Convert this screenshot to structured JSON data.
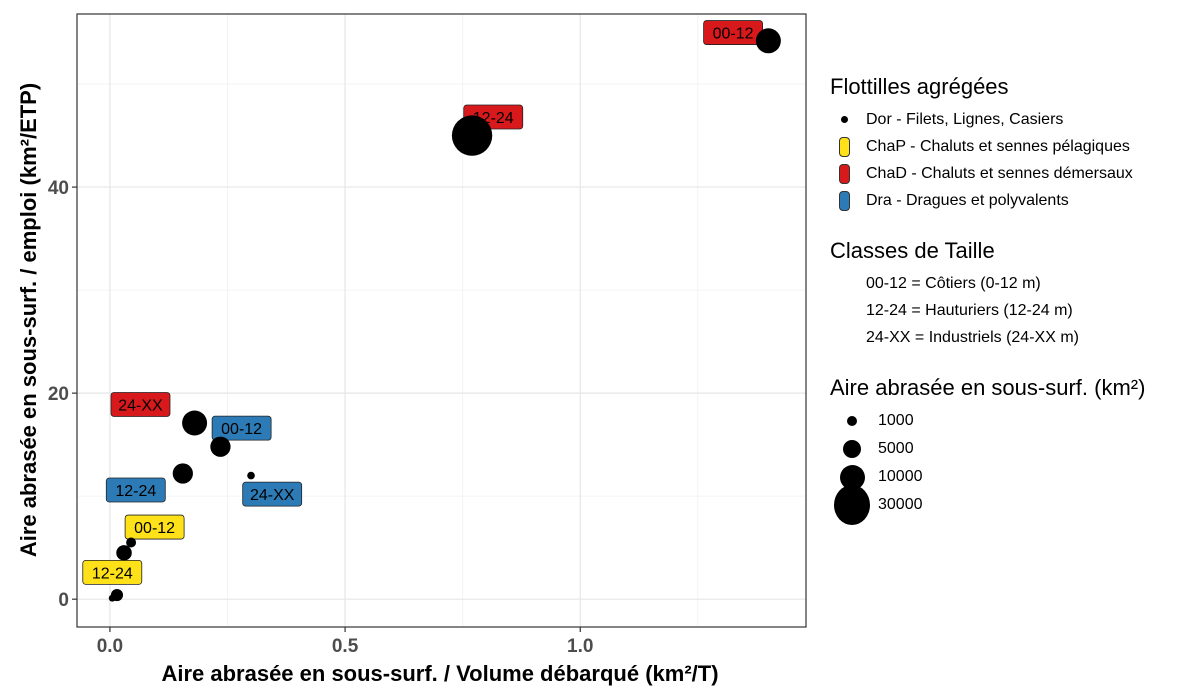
{
  "chart_data": {
    "type": "scatter",
    "title": "",
    "xlabel": "Aire abrasée en sous-surf. / Volume débarqué (km²/T)",
    "ylabel": "Aire abrasée en sous-surf. / emploi (km²/ETP)",
    "xlim": [
      -0.07,
      1.48
    ],
    "ylim": [
      -2.7,
      56.8
    ],
    "xticks": [
      0.0,
      0.5,
      1.0
    ],
    "xtick_labels": [
      "0.0",
      "0.5",
      "1.0"
    ],
    "yticks": [
      0,
      20,
      40
    ],
    "ytick_labels": [
      "0",
      "20",
      "40"
    ],
    "grid": true,
    "legend_position": "right",
    "points": [
      {
        "x": 0.005,
        "y": 0.1,
        "area": 200,
        "fleet": "Dor",
        "label": ""
      },
      {
        "x": 0.015,
        "y": 0.4,
        "area": 1500,
        "fleet": "Dor",
        "label": ""
      },
      {
        "x": 0.03,
        "y": 4.5,
        "area": 3000,
        "fleet": "ChaP",
        "label": "12-24"
      },
      {
        "x": 0.045,
        "y": 5.5,
        "area": 800,
        "fleet": "ChaP",
        "label": "00-12"
      },
      {
        "x": 0.155,
        "y": 12.2,
        "area": 6000,
        "fleet": "Dra",
        "label": "12-24"
      },
      {
        "x": 0.18,
        "y": 17.1,
        "area": 10000,
        "fleet": "ChaD",
        "label": "24-XX"
      },
      {
        "x": 0.235,
        "y": 14.8,
        "area": 6000,
        "fleet": "Dra",
        "label": "00-12"
      },
      {
        "x": 0.3,
        "y": 12.0,
        "area": 300,
        "fleet": "Dra",
        "label": "24-XX"
      },
      {
        "x": 0.77,
        "y": 45.0,
        "area": 30000,
        "fleet": "ChaD",
        "label": "12-24"
      },
      {
        "x": 1.4,
        "y": 54.2,
        "area": 10000,
        "fleet": "ChaD",
        "label": "00-12"
      }
    ],
    "labels": [
      {
        "text": "12-24",
        "fleet": "ChaP",
        "x": 0.005,
        "y": 2.6
      },
      {
        "text": "00-12",
        "fleet": "ChaP",
        "x": 0.095,
        "y": 7.0
      },
      {
        "text": "12-24",
        "fleet": "Dra",
        "x": 0.055,
        "y": 10.6
      },
      {
        "text": "24-XX",
        "fleet": "ChaD",
        "x": 0.065,
        "y": 18.9
      },
      {
        "text": "00-12",
        "fleet": "Dra",
        "x": 0.28,
        "y": 16.6
      },
      {
        "text": "24-XX",
        "fleet": "Dra",
        "x": 0.345,
        "y": 10.2
      },
      {
        "text": "12-24",
        "fleet": "ChaD",
        "x": 0.815,
        "y": 46.8
      },
      {
        "text": "00-12",
        "fleet": "ChaD",
        "x": 1.325,
        "y": 55.0
      }
    ],
    "fleet_colors": {
      "Dor": "#000000",
      "ChaP": "#ffe119",
      "ChaD": "#d7191c",
      "Dra": "#2c7bb6"
    }
  },
  "legend": {
    "fleets": {
      "title": "Flottilles agrégées",
      "items": [
        {
          "key": "Dor",
          "label": "Dor - Filets, Lignes, Casiers",
          "color": "#000000"
        },
        {
          "key": "ChaP",
          "label": "ChaP - Chaluts et sennes pélagiques",
          "color": "#ffe119"
        },
        {
          "key": "ChaD",
          "label": "ChaD - Chaluts et sennes démersaux",
          "color": "#d7191c"
        },
        {
          "key": "Dra",
          "label": "Dra - Dragues et polyvalents",
          "color": "#2c7bb6"
        }
      ]
    },
    "classes": {
      "title": "Classes de Taille",
      "items": [
        "00-12 = Côtiers (0-12 m)",
        "12-24 = Hauturiers (12-24 m)",
        "24-XX = Industriels (24-XX m)"
      ]
    },
    "sizes": {
      "title": "Aire abrasée en sous-surf. (km²)",
      "items": [
        {
          "label": "1000",
          "value": 1000
        },
        {
          "label": "5000",
          "value": 5000
        },
        {
          "label": "10000",
          "value": 10000
        },
        {
          "label": "30000",
          "value": 30000
        }
      ]
    }
  }
}
